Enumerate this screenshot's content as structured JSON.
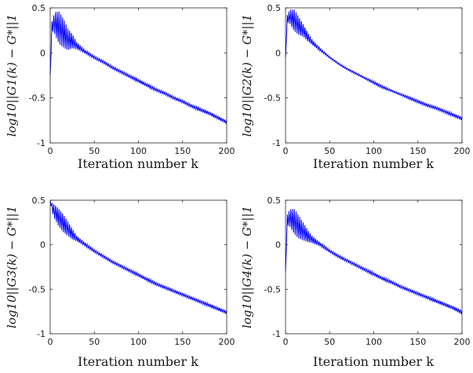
{
  "chart_data": [
    {
      "type": "line",
      "xlabel": "Iteration number k",
      "ylabel": "log10||G1(k) − G*||1",
      "xlim": [
        0,
        200
      ],
      "ylim": [
        -1,
        0.5
      ],
      "xticks": [
        "0",
        "50",
        "100",
        "150",
        "200"
      ],
      "yticks": [
        "0.5",
        "0",
        "-0.5",
        "-1"
      ],
      "grid": false,
      "series": [
        {
          "color": "#0000ff",
          "x": [
            0,
            2,
            5,
            10,
            15,
            20,
            25,
            30,
            40,
            50,
            60,
            70,
            80,
            90,
            100,
            110,
            120,
            130,
            140,
            150,
            160,
            170,
            180,
            190,
            200
          ],
          "y": [
            -0.25,
            0.3,
            0.33,
            0.28,
            0.22,
            0.15,
            0.13,
            0.08,
            0.01,
            -0.05,
            -0.1,
            -0.16,
            -0.21,
            -0.26,
            -0.31,
            -0.36,
            -0.41,
            -0.45,
            -0.5,
            -0.54,
            -0.59,
            -0.63,
            -0.67,
            -0.72,
            -0.77
          ],
          "amplitude": [
            0,
            0.05,
            0.12,
            0.18,
            0.16,
            0.12,
            0.08,
            0.04,
            0.02,
            0.015,
            0.015,
            0.015,
            0.015,
            0.015,
            0.02,
            0.02,
            0.015,
            0.015,
            0.015,
            0.015,
            0.015,
            0.02,
            0.02,
            0.02,
            0.02
          ]
        }
      ]
    },
    {
      "type": "line",
      "xlabel": "Iteration number k",
      "ylabel": "log10||G2(k) − G*||1",
      "xlim": [
        0,
        200
      ],
      "ylim": [
        -1,
        0.5
      ],
      "xticks": [
        "0",
        "50",
        "100",
        "150",
        "200"
      ],
      "yticks": [
        "0.5",
        "0",
        "-0.5",
        "-1"
      ],
      "grid": false,
      "series": [
        {
          "color": "#0000ff",
          "x": [
            0,
            2,
            5,
            10,
            15,
            20,
            25,
            30,
            40,
            50,
            60,
            70,
            80,
            90,
            100,
            110,
            120,
            130,
            140,
            150,
            160,
            170,
            180,
            190,
            200
          ],
          "y": [
            -0.05,
            0.38,
            0.4,
            0.36,
            0.3,
            0.25,
            0.18,
            0.12,
            0.03,
            -0.05,
            -0.12,
            -0.18,
            -0.23,
            -0.28,
            -0.33,
            -0.38,
            -0.42,
            -0.46,
            -0.5,
            -0.54,
            -0.58,
            -0.61,
            -0.65,
            -0.69,
            -0.73
          ],
          "amplitude": [
            0,
            0.04,
            0.08,
            0.12,
            0.1,
            0.07,
            0.05,
            0.03,
            0.015,
            0.01,
            0.01,
            0.01,
            0.01,
            0.01,
            0.015,
            0.015,
            0.01,
            0.01,
            0.015,
            0.015,
            0.015,
            0.015,
            0.015,
            0.02,
            0.02
          ]
        }
      ]
    },
    {
      "type": "line",
      "xlabel": "Iteration number k",
      "ylabel": "log10||G3(k) − G*||1",
      "xlim": [
        0,
        200
      ],
      "ylim": [
        -1,
        0.5
      ],
      "xticks": [
        "0",
        "50",
        "100",
        "150",
        "200"
      ],
      "yticks": [
        "0.5",
        "0",
        "-0.5",
        "-1"
      ],
      "grid": false,
      "series": [
        {
          "color": "#0000ff",
          "x": [
            0,
            2,
            5,
            10,
            15,
            20,
            25,
            30,
            40,
            50,
            60,
            70,
            80,
            90,
            100,
            110,
            120,
            130,
            140,
            150,
            160,
            170,
            180,
            190,
            200
          ],
          "y": [
            0.5,
            0.42,
            0.37,
            0.3,
            0.24,
            0.18,
            0.12,
            0.07,
            0.0,
            -0.07,
            -0.13,
            -0.19,
            -0.24,
            -0.29,
            -0.34,
            -0.39,
            -0.44,
            -0.48,
            -0.52,
            -0.56,
            -0.6,
            -0.64,
            -0.68,
            -0.72,
            -0.76
          ],
          "amplitude": [
            0,
            0.05,
            0.08,
            0.1,
            0.1,
            0.08,
            0.06,
            0.03,
            0.02,
            0.015,
            0.015,
            0.015,
            0.015,
            0.015,
            0.02,
            0.02,
            0.015,
            0.015,
            0.015,
            0.015,
            0.015,
            0.015,
            0.02,
            0.02,
            0.02
          ]
        }
      ]
    },
    {
      "type": "line",
      "xlabel": "Iteration number k",
      "ylabel": "log10||G4(k) − G*||1",
      "xlim": [
        0,
        200
      ],
      "ylim": [
        -1,
        0.5
      ],
      "xticks": [
        "0",
        "50",
        "100",
        "150",
        "200"
      ],
      "yticks": [
        "0.5",
        "0",
        "-0.5",
        "-1"
      ],
      "grid": false,
      "series": [
        {
          "color": "#0000ff",
          "x": [
            0,
            2,
            5,
            10,
            15,
            20,
            25,
            30,
            40,
            50,
            60,
            70,
            80,
            90,
            100,
            110,
            120,
            130,
            140,
            150,
            160,
            170,
            180,
            190,
            200
          ],
          "y": [
            -0.3,
            0.28,
            0.3,
            0.26,
            0.2,
            0.15,
            0.1,
            0.06,
            0.0,
            -0.07,
            -0.13,
            -0.18,
            -0.23,
            -0.28,
            -0.33,
            -0.38,
            -0.42,
            -0.47,
            -0.51,
            -0.55,
            -0.59,
            -0.63,
            -0.67,
            -0.71,
            -0.76
          ],
          "amplitude": [
            0,
            0.06,
            0.1,
            0.14,
            0.13,
            0.1,
            0.07,
            0.04,
            0.02,
            0.015,
            0.015,
            0.015,
            0.015,
            0.015,
            0.02,
            0.02,
            0.015,
            0.015,
            0.015,
            0.015,
            0.015,
            0.02,
            0.02,
            0.02,
            0.025
          ]
        }
      ]
    }
  ]
}
